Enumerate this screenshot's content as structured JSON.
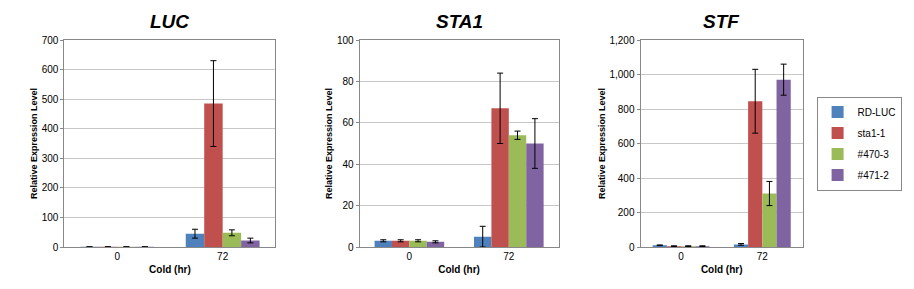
{
  "chart_data": [
    {
      "type": "bar",
      "title": "LUC",
      "x_label": "Cold (hr)",
      "y_label": "Relative Expression Level",
      "categories": [
        "0",
        "72"
      ],
      "ylim": [
        0,
        700
      ],
      "yticks": [
        0,
        100,
        200,
        300,
        400,
        500,
        600,
        700
      ],
      "grid": true,
      "legend": "right",
      "series": [
        {
          "name": "RD-LUC",
          "color": "#4f81bd",
          "values": [
            0.5,
            45
          ],
          "errors": [
            0.2,
            15
          ]
        },
        {
          "name": "sta1-1",
          "color": "#c0504d",
          "values": [
            0.5,
            485
          ],
          "errors": [
            0.2,
            145
          ]
        },
        {
          "name": "#470-3",
          "color": "#9bbb59",
          "values": [
            0.5,
            48
          ],
          "errors": [
            0.2,
            10
          ]
        },
        {
          "name": "#471-2",
          "color": "#8064a2",
          "values": [
            0.5,
            22
          ],
          "errors": [
            0.2,
            8
          ]
        }
      ]
    },
    {
      "type": "bar",
      "title": "STA1",
      "x_label": "Cold (hr)",
      "y_label": "Relative Expression Level",
      "categories": [
        "0",
        "72"
      ],
      "ylim": [
        0,
        100
      ],
      "yticks": [
        0,
        20,
        40,
        60,
        80,
        100
      ],
      "grid": true,
      "series": [
        {
          "name": "RD-LUC",
          "color": "#4f81bd",
          "values": [
            3,
            5
          ],
          "errors": [
            0.5,
            5
          ]
        },
        {
          "name": "sta1-1",
          "color": "#c0504d",
          "values": [
            3,
            67
          ],
          "errors": [
            0.5,
            17
          ]
        },
        {
          "name": "#470-3",
          "color": "#9bbb59",
          "values": [
            3,
            54
          ],
          "errors": [
            0.5,
            2
          ]
        },
        {
          "name": "#471-2",
          "color": "#8064a2",
          "values": [
            2.5,
            50
          ],
          "errors": [
            0.5,
            12
          ]
        }
      ]
    },
    {
      "type": "bar",
      "title": "STF",
      "x_label": "Cold (hr)",
      "y_label": "Relative Expression Level",
      "categories": [
        "0",
        "72"
      ],
      "ylim": [
        0,
        1200
      ],
      "yticks": [
        0,
        200,
        400,
        600,
        800,
        {
          "value": 1000,
          "label": "1,000"
        },
        {
          "value": 1200,
          "label": "1,200"
        }
      ],
      "grid": true,
      "series": [
        {
          "name": "RD-LUC",
          "color": "#4f81bd",
          "values": [
            10,
            15
          ],
          "errors": [
            2,
            5
          ]
        },
        {
          "name": "sta1-1",
          "color": "#c0504d",
          "values": [
            5,
            845
          ],
          "errors": [
            2,
            185
          ]
        },
        {
          "name": "#470-3",
          "color": "#9bbb59",
          "values": [
            5,
            310
          ],
          "errors": [
            2,
            70
          ]
        },
        {
          "name": "#471-2",
          "color": "#8064a2",
          "values": [
            5,
            970
          ],
          "errors": [
            2,
            90
          ]
        }
      ]
    }
  ]
}
